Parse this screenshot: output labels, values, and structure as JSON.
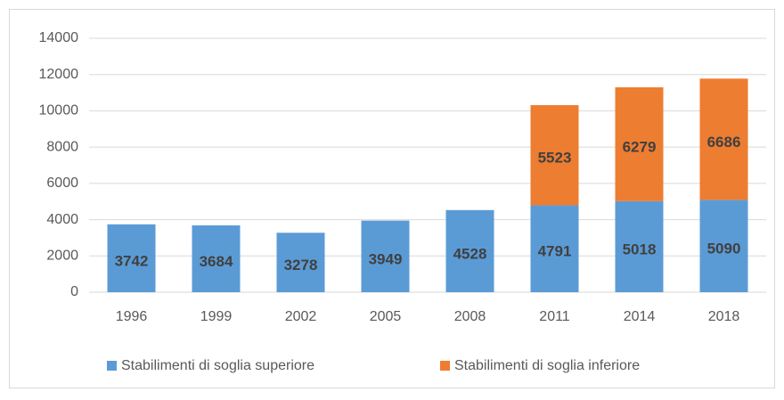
{
  "chart_data": {
    "type": "stacked_bar",
    "categories": [
      "1996",
      "1999",
      "2002",
      "2005",
      "2008",
      "2011",
      "2014",
      "2018"
    ],
    "series": [
      {
        "name": "Stabilimenti di soglia superiore",
        "color": "#5b9bd5",
        "values": [
          3742,
          3684,
          3278,
          3949,
          4528,
          4791,
          5018,
          5090
        ]
      },
      {
        "name": "Stabilimenti di soglia inferiore",
        "color": "#ed7d31",
        "values": [
          null,
          null,
          null,
          null,
          null,
          5523,
          6279,
          6686
        ]
      }
    ],
    "ylim": [
      0,
      14000
    ],
    "yticks": [
      0,
      2000,
      4000,
      6000,
      8000,
      10000,
      12000,
      14000
    ],
    "grid": true,
    "legend": "bottom"
  }
}
